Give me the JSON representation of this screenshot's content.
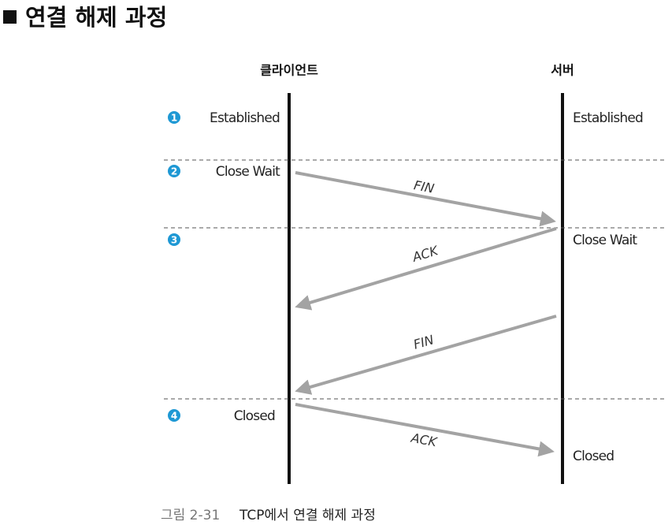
{
  "title": "연결 해제 과정",
  "columns": {
    "client": "클라이언트",
    "server": "서버"
  },
  "steps": [
    "1",
    "2",
    "3",
    "4"
  ],
  "client_states": [
    "Established",
    "Close Wait",
    "Closed"
  ],
  "server_states": [
    "Established",
    "Close Wait",
    "Closed"
  ],
  "messages": [
    "FIN",
    "ACK",
    "FIN",
    "ACK"
  ],
  "caption": {
    "label": "그림 2-31",
    "text": "TCP에서 연결 해제 과정"
  }
}
